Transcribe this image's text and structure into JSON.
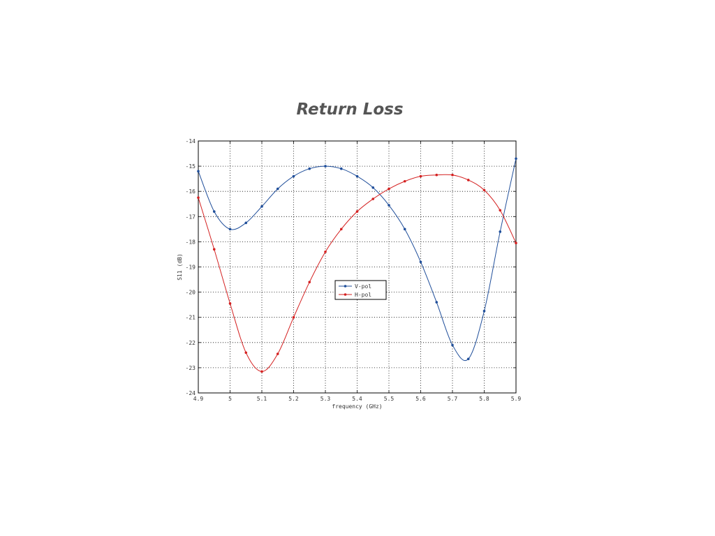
{
  "chart_data": {
    "type": "line",
    "title": "Return Loss",
    "xlabel": "frequency (GHz)",
    "ylabel": "S11 (dB)",
    "xlim": [
      4.9,
      5.9
    ],
    "ylim": [
      -24,
      -14
    ],
    "xticks": [
      4.9,
      5.0,
      5.1,
      5.2,
      5.3,
      5.4,
      5.5,
      5.6,
      5.7,
      5.8,
      5.9
    ],
    "xtick_labels": [
      "4.9",
      "5",
      "5.1",
      "5.2",
      "5.3",
      "5.4",
      "5.5",
      "5.6",
      "5.7",
      "5.8",
      "5.9"
    ],
    "yticks": [
      -14,
      -15,
      -16,
      -17,
      -18,
      -19,
      -20,
      -21,
      -22,
      -23,
      -24
    ],
    "ytick_labels": [
      "-14",
      "-15",
      "-16",
      "-17",
      "-18",
      "-19",
      "-20",
      "-21",
      "-22",
      "-23",
      "-24"
    ],
    "grid": true,
    "legend_position": "center",
    "x": [
      4.9,
      4.95,
      5.0,
      5.05,
      5.1,
      5.15,
      5.2,
      5.25,
      5.3,
      5.35,
      5.4,
      5.45,
      5.5,
      5.55,
      5.6,
      5.65,
      5.7,
      5.75,
      5.8,
      5.85,
      5.9
    ],
    "series": [
      {
        "name": "V-pol",
        "color": "#1f4e9a",
        "values": [
          -15.2,
          -16.8,
          -17.5,
          -17.25,
          -16.6,
          -15.9,
          -15.4,
          -15.1,
          -15.0,
          -15.1,
          -15.4,
          -15.85,
          -16.55,
          -17.5,
          -18.8,
          -20.4,
          -22.1,
          -22.65,
          -20.75,
          -17.6,
          -14.7
        ]
      },
      {
        "name": "H-pol",
        "color": "#d42020",
        "values": [
          -16.25,
          -18.3,
          -20.45,
          -22.4,
          -23.15,
          -22.45,
          -21.0,
          -19.6,
          -18.4,
          -17.5,
          -16.8,
          -16.3,
          -15.9,
          -15.6,
          -15.4,
          -15.35,
          -15.35,
          -15.55,
          -15.95,
          -16.75,
          -18.05
        ]
      }
    ]
  }
}
